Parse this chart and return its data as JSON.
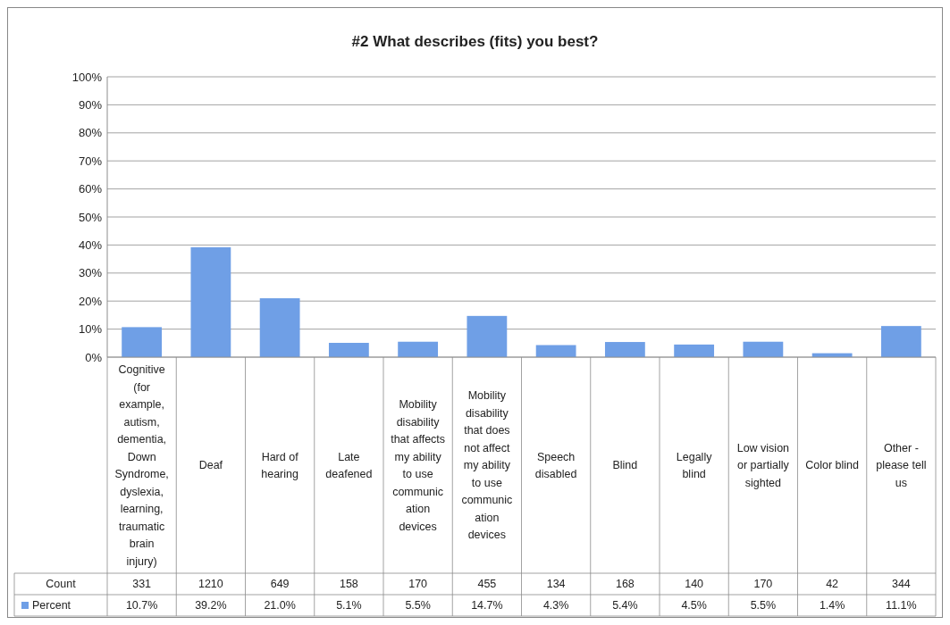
{
  "chart_data": {
    "type": "bar",
    "title": "#2 What describes (fits) you best?",
    "categories": [
      "Cognitive (for example, autism, dementia, Down Syndrome, dyslexia, learning, traumatic brain injury)",
      "Deaf",
      "Hard of hearing",
      "Late deafened",
      "Mobility disability that affects my ability to use communication devices",
      "Mobility disability that does not affect my ability to use communication devices",
      "Speech disabled",
      "Blind",
      "Legally blind",
      "Low vision or partially sighted",
      "Color blind",
      "Other - please tell us"
    ],
    "series": [
      {
        "name": "Percent",
        "color": "#6f9fe6",
        "values": [
          10.7,
          39.2,
          21.0,
          5.1,
          5.5,
          14.7,
          4.3,
          5.4,
          4.5,
          5.5,
          1.4,
          11.1
        ]
      }
    ],
    "value_labels": [
      "10.7%",
      "39.2%",
      "21.0%",
      "5.1%",
      "5.5%",
      "14.7%",
      "4.3%",
      "5.4%",
      "4.5%",
      "5.5%",
      "1.4%",
      "11.1%"
    ],
    "annotations": [
      "Count",
      "331",
      "1210",
      "649",
      "158",
      "170",
      "455",
      "134",
      "168",
      "140",
      "170",
      "42",
      "344"
    ],
    "ylim": [
      0,
      100
    ],
    "yticks": [
      {
        "value": 0,
        "label": "0%"
      },
      {
        "value": 10,
        "label": "10%"
      },
      {
        "value": 20,
        "label": "20%"
      },
      {
        "value": 30,
        "label": "30%"
      },
      {
        "value": 40,
        "label": "40%"
      },
      {
        "value": 50,
        "label": "50%"
      },
      {
        "value": 60,
        "label": "60%"
      },
      {
        "value": 70,
        "label": "70%"
      },
      {
        "value": 80,
        "label": "80%"
      },
      {
        "value": 90,
        "label": "90%"
      },
      {
        "value": 100,
        "label": "100%"
      }
    ],
    "grid": "y",
    "legend": "bottom"
  }
}
